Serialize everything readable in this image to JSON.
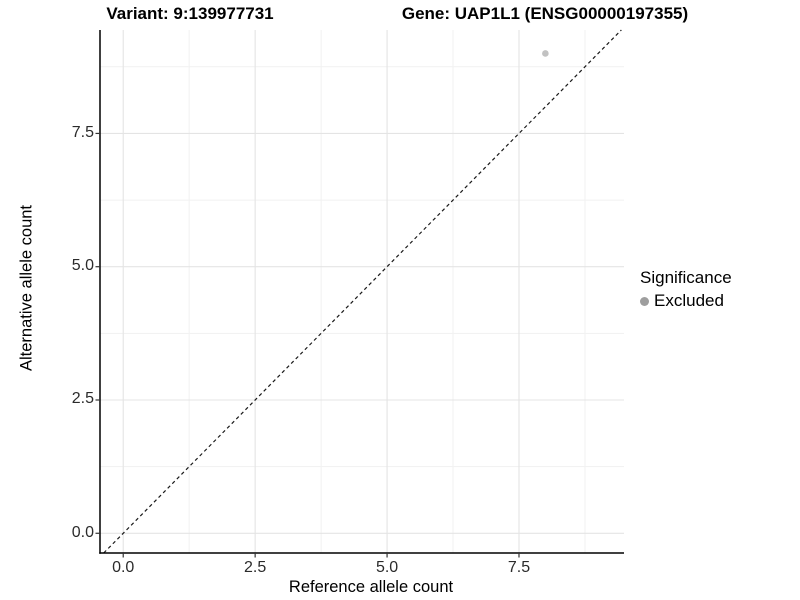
{
  "chart_data": {
    "type": "scatter",
    "title_left": "Variant: 9:139977731",
    "title_right": "Gene: UAP1L1 (ENSG00000197355)",
    "xlabel": "Reference allele count",
    "ylabel": "Alternative allele count",
    "x_ticks": {
      "values": [
        0,
        2.5,
        5,
        7.5
      ],
      "labels": [
        "0.0",
        "2.5",
        "5.0",
        "7.5"
      ]
    },
    "y_ticks": {
      "values": [
        0,
        2.5,
        5,
        7.5
      ],
      "labels": [
        "0.0",
        "2.5",
        "5.0",
        "7.5"
      ]
    },
    "x_minor_ticks": [
      1.25,
      3.75,
      6.25,
      8.75
    ],
    "y_minor_ticks": [
      1.25,
      3.75,
      6.25,
      8.75
    ],
    "xlim": [
      -0.44,
      9.49
    ],
    "ylim": [
      -0.37,
      9.44
    ],
    "grid": "major+minor",
    "points": [
      {
        "x": 8,
        "y": 9,
        "group": "Excluded"
      }
    ],
    "reference_line": {
      "type": "identity",
      "slope": 1,
      "intercept": 0,
      "style": "dashed"
    },
    "legend": {
      "position": "right",
      "title": "Significance",
      "items": [
        {
          "label": "Excluded",
          "color": "#9e9e9e"
        }
      ]
    },
    "colors": {
      "point": "#c2c2c2",
      "grid_major": "#e4e4e4",
      "grid_minor": "#f1f1f1",
      "axis_line": "#000000",
      "tick_mark": "#333333",
      "dashed_line": "#1a1a1a",
      "background": "#ffffff"
    }
  }
}
